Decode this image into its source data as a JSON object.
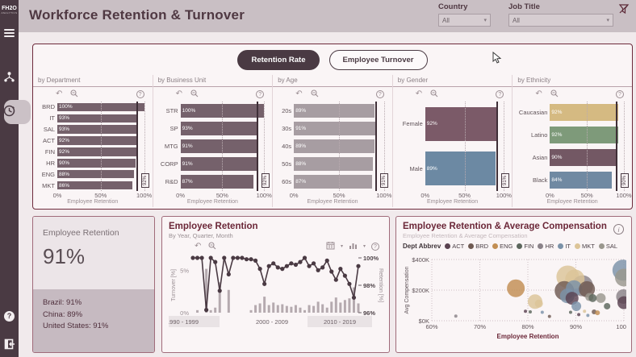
{
  "sidebar": {
    "logo": "FH2O",
    "logo_sub": "ANALYTICS"
  },
  "header": {
    "title": "Workforce Retention & Turnover",
    "filters": [
      {
        "label": "Country",
        "value": "All"
      },
      {
        "label": "Job Title",
        "value": "All"
      }
    ]
  },
  "toggle": {
    "options": [
      {
        "label": "Retention Rate",
        "selected": true
      },
      {
        "label": "Employee Turnover",
        "selected": false
      }
    ]
  },
  "kpi": {
    "title": "Employee Retention",
    "value": "91%",
    "breakdown": [
      "Brazil: 91%",
      "China: 89%",
      "United States: 91%"
    ]
  },
  "icons": {
    "undo": "↶",
    "help": "?",
    "info": "i",
    "caret": "▾"
  },
  "colors": {
    "accent": "#6b2738",
    "dark": "#4a3a43",
    "bar": "#75616b",
    "bar_light": "#a79da2"
  },
  "chart_data": [
    {
      "id": "by-department",
      "type": "bar",
      "title": "by Department",
      "categories": [
        "BRD",
        "IT",
        "SAL",
        "ACT",
        "FIN",
        "HR",
        "ENG",
        "MKT"
      ],
      "values": [
        100,
        93,
        93,
        92,
        92,
        90,
        88,
        86
      ],
      "labels": [
        "100%",
        "93%",
        "93%",
        "92%",
        "92%",
        "90%",
        "88%",
        "86%"
      ],
      "colors": [
        "#75616b",
        "#75616b",
        "#75616b",
        "#75616b",
        "#75616b",
        "#75616b",
        "#75616b",
        "#75616b"
      ],
      "ref": 92,
      "ref_label": "92%",
      "x_ticks": [
        "0%",
        "50%",
        "100%"
      ],
      "xlabel": "Employee Retention",
      "xlim": [
        0,
        100
      ],
      "label_w": 30
    },
    {
      "id": "by-business-unit",
      "type": "bar",
      "title": "by Business Unit",
      "categories": [
        "STR",
        "SP",
        "MTG",
        "CORP",
        "R&D"
      ],
      "values": [
        100,
        93,
        91,
        91,
        87
      ],
      "labels": [
        "100%",
        "93%",
        "91%",
        "91%",
        "87%"
      ],
      "colors": [
        "#75616b",
        "#75616b",
        "#75616b",
        "#75616b",
        "#75616b"
      ],
      "ref": 92,
      "ref_label": "92%",
      "x_ticks": [
        "0%",
        "50%",
        "100%"
      ],
      "xlabel": "Employee Retention",
      "xlim": [
        0,
        100
      ],
      "label_w": 34
    },
    {
      "id": "by-age",
      "type": "bar",
      "title": "by Age",
      "categories": [
        "20s",
        "30s",
        "40s",
        "50s",
        "60s"
      ],
      "values": [
        89,
        91,
        89,
        88,
        87
      ],
      "labels": [
        "89%",
        "91%",
        "89%",
        "88%",
        "87%"
      ],
      "colors": [
        "#a79da2",
        "#a79da2",
        "#a79da2",
        "#a79da2",
        "#a79da2"
      ],
      "ref": 91,
      "ref_label": "91%",
      "x_ticks": [
        "0%",
        "50%",
        "100%"
      ],
      "xlabel": "Employee Retention",
      "xlim": [
        0,
        100
      ],
      "label_w": 26
    },
    {
      "id": "by-gender",
      "type": "bar",
      "title": "by Gender",
      "categories": [
        "Female",
        "Male"
      ],
      "values": [
        92,
        89
      ],
      "labels": [
        "92%",
        "89%"
      ],
      "colors": [
        "#7b5a68",
        "#6c89a3"
      ],
      "ref": 91,
      "ref_label": "91%",
      "x_ticks": [
        "0%",
        "50%",
        "100%"
      ],
      "xlabel": "Employee Retention",
      "xlim": [
        0,
        100
      ],
      "label_w": 40
    },
    {
      "id": "by-ethnicity",
      "type": "bar",
      "title": "by Ethnicity",
      "categories": [
        "Caucasian",
        "Latino",
        "Asian",
        "Black"
      ],
      "values": [
        92,
        92,
        90,
        84
      ],
      "labels": [
        "92%",
        "92%",
        "90%",
        "84%"
      ],
      "colors": [
        "#d5ba82",
        "#7e9a7a",
        "#735864",
        "#7089a2"
      ],
      "ref": 90,
      "ref_label": "90%",
      "x_ticks": [
        "0%",
        "50%",
        "100%"
      ],
      "xlabel": "Employee Retention",
      "xlim": [
        0,
        100
      ],
      "label_w": 46
    },
    {
      "id": "retention-trend",
      "type": "line",
      "title": "Employee Retention",
      "subtitle": "By Year, Quarter, Month",
      "ylabel_left": "Turnover [%]",
      "ylabel_right": "Retention [%]",
      "left_ticks": [
        "5%",
        "0%"
      ],
      "right_ticks": [
        "100%",
        "98%",
        "96%"
      ],
      "left_range": [
        0,
        6.5
      ],
      "right_range": [
        96,
        100
      ],
      "x_bands": [
        "1990 - 1999",
        "2000 - 2009",
        "2010 - 2019"
      ],
      "series": [
        {
          "name": "Retention",
          "values": [
            100,
            100,
            100,
            96.2,
            100,
            99.7,
            97.6,
            100,
            98.8,
            100,
            100,
            100,
            99.9,
            99.9,
            99.8,
            99.2,
            98.1,
            99.4,
            99.6,
            99.3,
            99.2,
            99.4,
            99.6,
            99.5,
            99.7,
            100,
            99.4,
            99.6,
            99.1,
            99.3,
            99.8,
            99.0,
            98.4,
            99.2,
            98.7,
            98.1,
            97.1,
            99.4
          ]
        },
        {
          "name": "Turnover",
          "values": [
            0.2,
            0.3,
            0.2,
            5.2,
            0.3,
            0.6,
            3.6,
            0.2,
            2.7,
            0.2,
            0.2,
            0.2,
            0.2,
            0.3,
            0.9,
            1.1,
            1.9,
            0.9,
            1.2,
            0.9,
            1.0,
            0.8,
            0.7,
            0.9,
            0.6,
            0.3,
            0.9,
            0.8,
            1.3,
            1.0,
            0.6,
            1.3,
            1.8,
            1.2,
            1.5,
            1.7,
            3.0,
            1.1
          ]
        }
      ]
    },
    {
      "id": "retention-vs-compensation",
      "type": "scatter",
      "title": "Employee Retention & Average Compensation",
      "subtitle": "Employee Retention & Average Compensation",
      "legend_title": "Dept Abbrev",
      "legend": [
        {
          "name": "ACT",
          "color": "#5a4250"
        },
        {
          "name": "BRD",
          "color": "#6f5a52"
        },
        {
          "name": "ENG",
          "color": "#c28e52"
        },
        {
          "name": "FIN",
          "color": "#5c665c"
        },
        {
          "name": "HR",
          "color": "#8a8288"
        },
        {
          "name": "IT",
          "color": "#7b92a8"
        },
        {
          "name": "MKT",
          "color": "#dcc497"
        },
        {
          "name": "SAL",
          "color": "#9a978e"
        }
      ],
      "xlabel": "Employee Retention",
      "ylabel": "Avg Compensation",
      "x_ticks": [
        "60%",
        "70%",
        "80%",
        "90%",
        "100%"
      ],
      "y_ticks": [
        "$0K",
        "$200K",
        "$400K"
      ],
      "xlim": [
        60,
        100
      ],
      "ylim": [
        0,
        400
      ],
      "points": [
        [
          65,
          30,
          2,
          "HR"
        ],
        [
          77.5,
          212,
          11,
          "ENG"
        ],
        [
          81.5,
          125,
          9,
          "MKT"
        ],
        [
          82.3,
          112,
          5,
          "MKT"
        ],
        [
          79.5,
          62,
          2,
          "ACT"
        ],
        [
          80.5,
          58,
          2,
          "FIN"
        ],
        [
          83,
          55,
          2,
          "IT"
        ],
        [
          84.5,
          28,
          2,
          "BRD"
        ],
        [
          88.3,
          287,
          14,
          "MKT"
        ],
        [
          89.8,
          272,
          12,
          "MKT"
        ],
        [
          87.6,
          196,
          12,
          "BRD"
        ],
        [
          89.6,
          212,
          10,
          "IT"
        ],
        [
          88.2,
          162,
          9,
          "IT"
        ],
        [
          89.2,
          147,
          8,
          "ACT"
        ],
        [
          91.4,
          228,
          13,
          "HR"
        ],
        [
          92.3,
          206,
          10,
          "BRD"
        ],
        [
          90.1,
          95,
          6,
          "IT"
        ],
        [
          92.8,
          155,
          5,
          "SAL"
        ],
        [
          93.5,
          148,
          5,
          "FIN"
        ],
        [
          88.9,
          55,
          2,
          "FIN"
        ],
        [
          90.6,
          40,
          2,
          "ACT"
        ],
        [
          91.8,
          62,
          2,
          "MKT"
        ],
        [
          92.5,
          35,
          2,
          "IT"
        ],
        [
          93.8,
          58,
          3,
          "BRD"
        ],
        [
          94.5,
          52,
          3,
          "ENG"
        ],
        [
          95.2,
          148,
          6,
          "SAL"
        ],
        [
          96.5,
          95,
          4,
          "FIN"
        ],
        [
          99.8,
          330,
          13,
          "IT"
        ],
        [
          100,
          282,
          11,
          "SAL"
        ],
        [
          99.9,
          158,
          9,
          "HR"
        ],
        [
          100,
          118,
          8,
          "ACT"
        ]
      ]
    }
  ]
}
